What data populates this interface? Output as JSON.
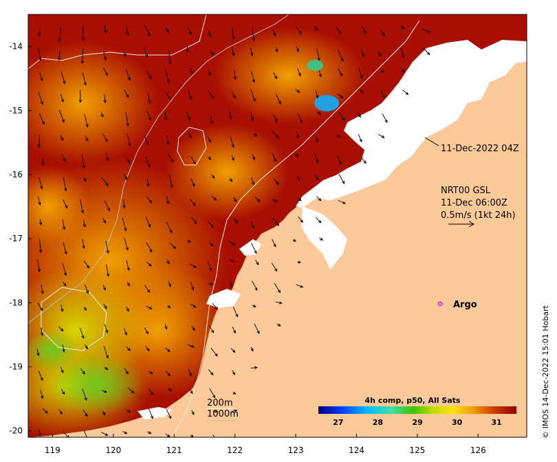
{
  "map": {
    "lon_ticks": [
      "119",
      "120",
      "121",
      "122",
      "123",
      "124",
      "125",
      "126"
    ],
    "lat_ticks": [
      "-14",
      "-15",
      "-16",
      "-17",
      "-18",
      "-19",
      "-20"
    ],
    "lon_range": [
      118.6,
      126.8
    ],
    "lat_range": [
      -20.1,
      -13.5
    ]
  },
  "annotations": {
    "pass_time": "11-Dec-2022 04Z",
    "current_source": "NRT00 GSL",
    "current_time": "11-Dec 06:00Z",
    "current_scale": "0.5m/s (1kt 24h)",
    "argo_label": "Argo",
    "contour_200": "200m",
    "contour_1000": "1000m"
  },
  "colorbar": {
    "title": "4h comp, p50, All Sats",
    "ticks": [
      "27",
      "28",
      "29",
      "30",
      "31"
    ],
    "range": [
      26.5,
      31.5
    ]
  },
  "credit": "© IMOS 14-Dec-2022 15:01 Hobart",
  "colors": {
    "land": "#fcc999",
    "sst_hot": "#a30f00",
    "sst_warm": "#e07a00",
    "sst_mid": "#f2c400",
    "sst_cool": "#b4e000",
    "argo_marker": "#ff00ff"
  }
}
